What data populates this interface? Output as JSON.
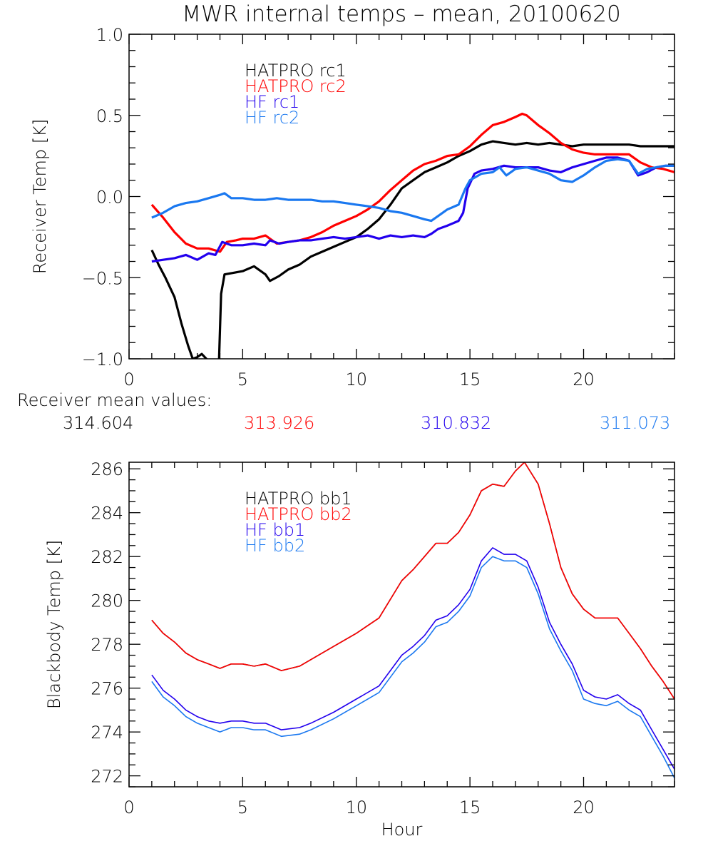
{
  "title": "MWR internal temps – mean, 20100620",
  "colors": {
    "hatpro1": "#000000",
    "hatpro2": "#ff0000",
    "hf1": "#2200ee",
    "hf2": "#1a78f0",
    "axis": "#000000"
  },
  "receiver_means": {
    "label": "Receiver mean values:",
    "values": [
      {
        "series": "HATPRO rc1",
        "text": "314.604",
        "color_key": "hatpro1"
      },
      {
        "series": "HATPRO rc2",
        "text": "313.926",
        "color_key": "hatpro2"
      },
      {
        "series": "HF rc1",
        "text": "310.832",
        "color_key": "hf1"
      },
      {
        "series": "HF rc2",
        "text": "311.073",
        "color_key": "hf2"
      }
    ]
  },
  "chart_data": [
    {
      "id": "receiver",
      "type": "line",
      "title": "MWR internal temps – mean, 20100620",
      "xlabel": "",
      "ylabel": "Receiver Temp [K]",
      "xlim": [
        0,
        24
      ],
      "ylim": [
        -1.0,
        1.0
      ],
      "xticks": [
        0,
        5,
        10,
        15,
        20
      ],
      "xtick_labels": [
        "0",
        "5",
        "10",
        "15",
        "20"
      ],
      "x_minor_step": 1,
      "yticks": [
        -1.0,
        -0.5,
        0.0,
        0.5,
        1.0
      ],
      "ytick_labels": [
        "−1.0",
        "−0.5",
        "0.0",
        "0.5",
        "1.0"
      ],
      "y_minor_step": 0.1,
      "grid": false,
      "legend_placement": "top-left-inside",
      "series": [
        {
          "name": "HATPRO rc1",
          "color_key": "hatpro1",
          "x": [
            1.0,
            1.3,
            1.6,
            2.0,
            2.3,
            2.6,
            2.8,
            3.0,
            3.2,
            3.4,
            3.5
          ],
          "y": [
            -0.33,
            -0.42,
            -0.5,
            -0.62,
            -0.78,
            -0.92,
            -1.0,
            -0.99,
            -0.97,
            -1.0,
            -1.05
          ]
        },
        {
          "name": "HATPRO rc1",
          "color_key": "hatpro1",
          "x": [
            3.95,
            4.05,
            4.2,
            4.6,
            5.0,
            5.5,
            6.0,
            6.2,
            6.6,
            7.0,
            7.5,
            8.0,
            8.5,
            9.0,
            9.5,
            10.0,
            10.5,
            11.0,
            11.5,
            12.0,
            12.5,
            13.0,
            13.5,
            14.0,
            14.5,
            15.0,
            15.5,
            16.0,
            16.5,
            17.0,
            17.5,
            18.0,
            18.5,
            19.0,
            19.5,
            20.0,
            20.5,
            21.0,
            21.5,
            22.0,
            22.5,
            23.0,
            23.5,
            24.0
          ],
          "y": [
            -1.05,
            -0.6,
            -0.48,
            -0.47,
            -0.46,
            -0.43,
            -0.48,
            -0.52,
            -0.49,
            -0.45,
            -0.42,
            -0.37,
            -0.34,
            -0.31,
            -0.28,
            -0.25,
            -0.2,
            -0.14,
            -0.05,
            0.05,
            0.1,
            0.15,
            0.18,
            0.21,
            0.25,
            0.28,
            0.32,
            0.34,
            0.33,
            0.32,
            0.33,
            0.32,
            0.33,
            0.32,
            0.31,
            0.32,
            0.32,
            0.32,
            0.32,
            0.32,
            0.31,
            0.31,
            0.31,
            0.31
          ]
        },
        {
          "name": "HATPRO rc2",
          "color_key": "hatpro2",
          "x": [
            1.0,
            1.5,
            2.0,
            2.5,
            3.0,
            3.5,
            4.0,
            4.3,
            4.7,
            5.0,
            5.5,
            6.0,
            6.5,
            7.0,
            7.5,
            8.0,
            8.5,
            9.0,
            9.5,
            10.0,
            10.5,
            11.0,
            11.5,
            12.0,
            12.5,
            13.0,
            13.5,
            14.0,
            14.5,
            15.0,
            15.5,
            16.0,
            16.5,
            17.0,
            17.3,
            17.5,
            18.0,
            18.5,
            19.0,
            19.5,
            20.0,
            20.5,
            21.0,
            21.5,
            22.0,
            22.5,
            23.0,
            23.5,
            24.0
          ],
          "y": [
            -0.05,
            -0.13,
            -0.22,
            -0.29,
            -0.32,
            -0.32,
            -0.34,
            -0.28,
            -0.27,
            -0.26,
            -0.26,
            -0.24,
            -0.29,
            -0.28,
            -0.27,
            -0.25,
            -0.22,
            -0.18,
            -0.15,
            -0.12,
            -0.08,
            -0.03,
            0.04,
            0.1,
            0.16,
            0.2,
            0.22,
            0.25,
            0.26,
            0.31,
            0.38,
            0.44,
            0.46,
            0.49,
            0.51,
            0.5,
            0.44,
            0.39,
            0.33,
            0.29,
            0.27,
            0.26,
            0.26,
            0.26,
            0.26,
            0.21,
            0.18,
            0.17,
            0.15
          ]
        },
        {
          "name": "HF rc1",
          "color_key": "hf1",
          "x": [
            1.0,
            1.5,
            2.0,
            2.5,
            3.0,
            3.5,
            3.8,
            4.1,
            4.5,
            5.0,
            5.5,
            6.0,
            6.2,
            6.6,
            7.0,
            7.5,
            8.0,
            8.5,
            9.0,
            9.5,
            10.0,
            10.5,
            11.0,
            11.5,
            12.0,
            12.5,
            13.0,
            13.3,
            13.6,
            14.0,
            14.5,
            14.7,
            14.9,
            15.2,
            15.5,
            16.0,
            16.5,
            17.0,
            17.5,
            18.0,
            18.5,
            19.0,
            19.5,
            20.0,
            20.5,
            21.0,
            21.5,
            22.0,
            22.4,
            22.8,
            23.2,
            23.6,
            24.0
          ],
          "y": [
            -0.4,
            -0.39,
            -0.38,
            -0.36,
            -0.39,
            -0.35,
            -0.36,
            -0.28,
            -0.3,
            -0.3,
            -0.29,
            -0.3,
            -0.27,
            -0.29,
            -0.28,
            -0.27,
            -0.27,
            -0.26,
            -0.25,
            -0.26,
            -0.25,
            -0.24,
            -0.26,
            -0.24,
            -0.25,
            -0.24,
            -0.25,
            -0.23,
            -0.2,
            -0.18,
            -0.15,
            -0.1,
            0.05,
            0.14,
            0.16,
            0.17,
            0.19,
            0.18,
            0.18,
            0.18,
            0.16,
            0.15,
            0.18,
            0.2,
            0.22,
            0.24,
            0.24,
            0.22,
            0.13,
            0.15,
            0.18,
            0.19,
            0.19
          ]
        },
        {
          "name": "HF rc2",
          "color_key": "hf2",
          "x": [
            1.0,
            1.5,
            2.0,
            2.5,
            3.0,
            3.5,
            4.0,
            4.2,
            4.5,
            5.0,
            5.5,
            6.0,
            6.5,
            7.0,
            7.5,
            8.0,
            8.5,
            9.0,
            9.5,
            10.0,
            10.5,
            11.0,
            11.5,
            12.0,
            12.5,
            13.0,
            13.3,
            13.6,
            14.0,
            14.5,
            14.8,
            15.0,
            15.5,
            16.0,
            16.3,
            16.6,
            17.0,
            17.5,
            18.0,
            18.5,
            19.0,
            19.5,
            20.0,
            20.5,
            21.0,
            21.5,
            22.0,
            22.4,
            22.8,
            23.2,
            23.6,
            24.0
          ],
          "y": [
            -0.13,
            -0.1,
            -0.06,
            -0.04,
            -0.03,
            -0.01,
            0.01,
            0.02,
            -0.01,
            -0.01,
            -0.02,
            -0.02,
            -0.01,
            -0.02,
            -0.02,
            -0.02,
            -0.03,
            -0.03,
            -0.04,
            -0.05,
            -0.06,
            -0.07,
            -0.09,
            -0.1,
            -0.12,
            -0.14,
            -0.15,
            -0.12,
            -0.08,
            -0.05,
            0.05,
            0.1,
            0.14,
            0.15,
            0.18,
            0.13,
            0.17,
            0.18,
            0.16,
            0.14,
            0.1,
            0.09,
            0.13,
            0.18,
            0.22,
            0.23,
            0.22,
            0.14,
            0.17,
            0.18,
            0.19,
            0.19
          ]
        }
      ]
    },
    {
      "id": "blackbody",
      "type": "line",
      "title": "",
      "xlabel": "Hour",
      "ylabel": "Blackbody Temp [K]",
      "xlim": [
        0,
        24
      ],
      "ylim": [
        271.5,
        286.3
      ],
      "xticks": [
        0,
        5,
        10,
        15,
        20
      ],
      "xtick_labels": [
        "0",
        "5",
        "10",
        "15",
        "20"
      ],
      "x_minor_step": 1,
      "yticks": [
        272,
        274,
        276,
        278,
        280,
        282,
        284,
        286
      ],
      "ytick_labels": [
        "272",
        "274",
        "276",
        "278",
        "280",
        "282",
        "284",
        "286"
      ],
      "y_minor_step": 0.5,
      "grid": false,
      "legend_placement": "top-left-inside",
      "series": [
        {
          "name": "HATPRO bb1",
          "color_key": "hatpro1",
          "x": [
            1.0,
            1.5,
            2.0,
            2.5,
            3.0,
            3.5,
            4.0,
            4.5,
            5.0,
            5.5,
            6.0,
            6.7,
            7.5,
            8.0,
            9.0,
            10.0,
            11.0,
            12.0,
            12.5,
            13.0,
            13.5,
            14.0,
            14.5,
            15.0,
            15.5,
            16.0,
            16.5,
            17.0,
            17.4,
            18.0,
            18.5,
            19.0,
            19.5,
            20.0,
            20.5,
            21.0,
            21.5,
            22.0,
            22.5,
            23.0,
            23.5,
            24.0
          ],
          "y": [
            279.1,
            278.5,
            278.1,
            277.6,
            277.3,
            277.1,
            276.9,
            277.1,
            277.1,
            277.0,
            277.1,
            276.8,
            277.0,
            277.3,
            277.9,
            278.5,
            279.2,
            280.9,
            281.4,
            282.0,
            282.6,
            282.6,
            283.1,
            283.9,
            285.0,
            285.3,
            285.2,
            285.9,
            286.3,
            285.3,
            283.5,
            281.5,
            280.3,
            279.6,
            279.2,
            279.2,
            279.2,
            278.5,
            277.8,
            277.0,
            276.3,
            275.5
          ]
        },
        {
          "name": "HATPRO bb2",
          "color_key": "hatpro2",
          "x": [
            1.0,
            1.5,
            2.0,
            2.5,
            3.0,
            3.5,
            4.0,
            4.5,
            5.0,
            5.5,
            6.0,
            6.7,
            7.5,
            8.0,
            9.0,
            10.0,
            11.0,
            12.0,
            12.5,
            13.0,
            13.5,
            14.0,
            14.5,
            15.0,
            15.5,
            16.0,
            16.5,
            17.0,
            17.4,
            18.0,
            18.5,
            19.0,
            19.5,
            20.0,
            20.5,
            21.0,
            21.5,
            22.0,
            22.5,
            23.0,
            23.5,
            24.0
          ],
          "y": [
            279.1,
            278.5,
            278.1,
            277.6,
            277.3,
            277.1,
            276.9,
            277.1,
            277.1,
            277.0,
            277.1,
            276.8,
            277.0,
            277.3,
            277.9,
            278.5,
            279.2,
            280.9,
            281.4,
            282.0,
            282.6,
            282.6,
            283.1,
            283.9,
            285.0,
            285.3,
            285.2,
            285.9,
            286.3,
            285.3,
            283.5,
            281.5,
            280.3,
            279.6,
            279.2,
            279.2,
            279.2,
            278.5,
            277.8,
            277.0,
            276.3,
            275.5
          ]
        },
        {
          "name": "HF bb1",
          "color_key": "hf1",
          "x": [
            1.0,
            1.5,
            2.0,
            2.5,
            3.0,
            3.5,
            4.0,
            4.5,
            5.0,
            5.5,
            6.0,
            6.7,
            7.5,
            8.0,
            9.0,
            10.0,
            11.0,
            12.0,
            12.5,
            13.0,
            13.5,
            14.0,
            14.5,
            15.0,
            15.5,
            16.0,
            16.5,
            17.0,
            17.5,
            18.0,
            18.5,
            19.0,
            19.5,
            20.0,
            20.5,
            21.0,
            21.5,
            22.0,
            22.5,
            23.0,
            23.5,
            24.0
          ],
          "y": [
            276.6,
            275.9,
            275.5,
            275.0,
            274.7,
            274.5,
            274.4,
            274.5,
            274.5,
            274.4,
            274.4,
            274.1,
            274.2,
            274.4,
            274.9,
            275.5,
            276.1,
            277.5,
            277.9,
            278.4,
            279.1,
            279.3,
            279.8,
            280.5,
            281.8,
            282.4,
            282.1,
            282.1,
            281.8,
            280.6,
            279.0,
            278.0,
            277.1,
            275.9,
            275.6,
            275.5,
            275.7,
            275.3,
            275.0,
            274.1,
            273.2,
            272.3
          ]
        },
        {
          "name": "HF bb2",
          "color_key": "hf2",
          "x": [
            1.0,
            1.5,
            2.0,
            2.5,
            3.0,
            3.5,
            4.0,
            4.5,
            5.0,
            5.5,
            6.0,
            6.7,
            7.5,
            8.0,
            9.0,
            10.0,
            11.0,
            12.0,
            12.5,
            13.0,
            13.5,
            14.0,
            14.5,
            15.0,
            15.5,
            16.0,
            16.5,
            17.0,
            17.5,
            18.0,
            18.5,
            19.0,
            19.5,
            20.0,
            20.5,
            21.0,
            21.5,
            22.0,
            22.5,
            23.0,
            23.5,
            24.0
          ],
          "y": [
            276.3,
            275.6,
            275.2,
            274.7,
            274.4,
            274.2,
            274.0,
            274.2,
            274.2,
            274.1,
            274.1,
            273.8,
            273.9,
            274.1,
            274.6,
            275.2,
            275.8,
            277.2,
            277.6,
            278.1,
            278.8,
            279.0,
            279.5,
            280.2,
            281.5,
            282.0,
            281.8,
            281.8,
            281.5,
            280.3,
            278.7,
            277.7,
            276.8,
            275.5,
            275.3,
            275.2,
            275.4,
            275.0,
            274.7,
            273.8,
            272.9,
            271.9
          ]
        }
      ]
    }
  ]
}
